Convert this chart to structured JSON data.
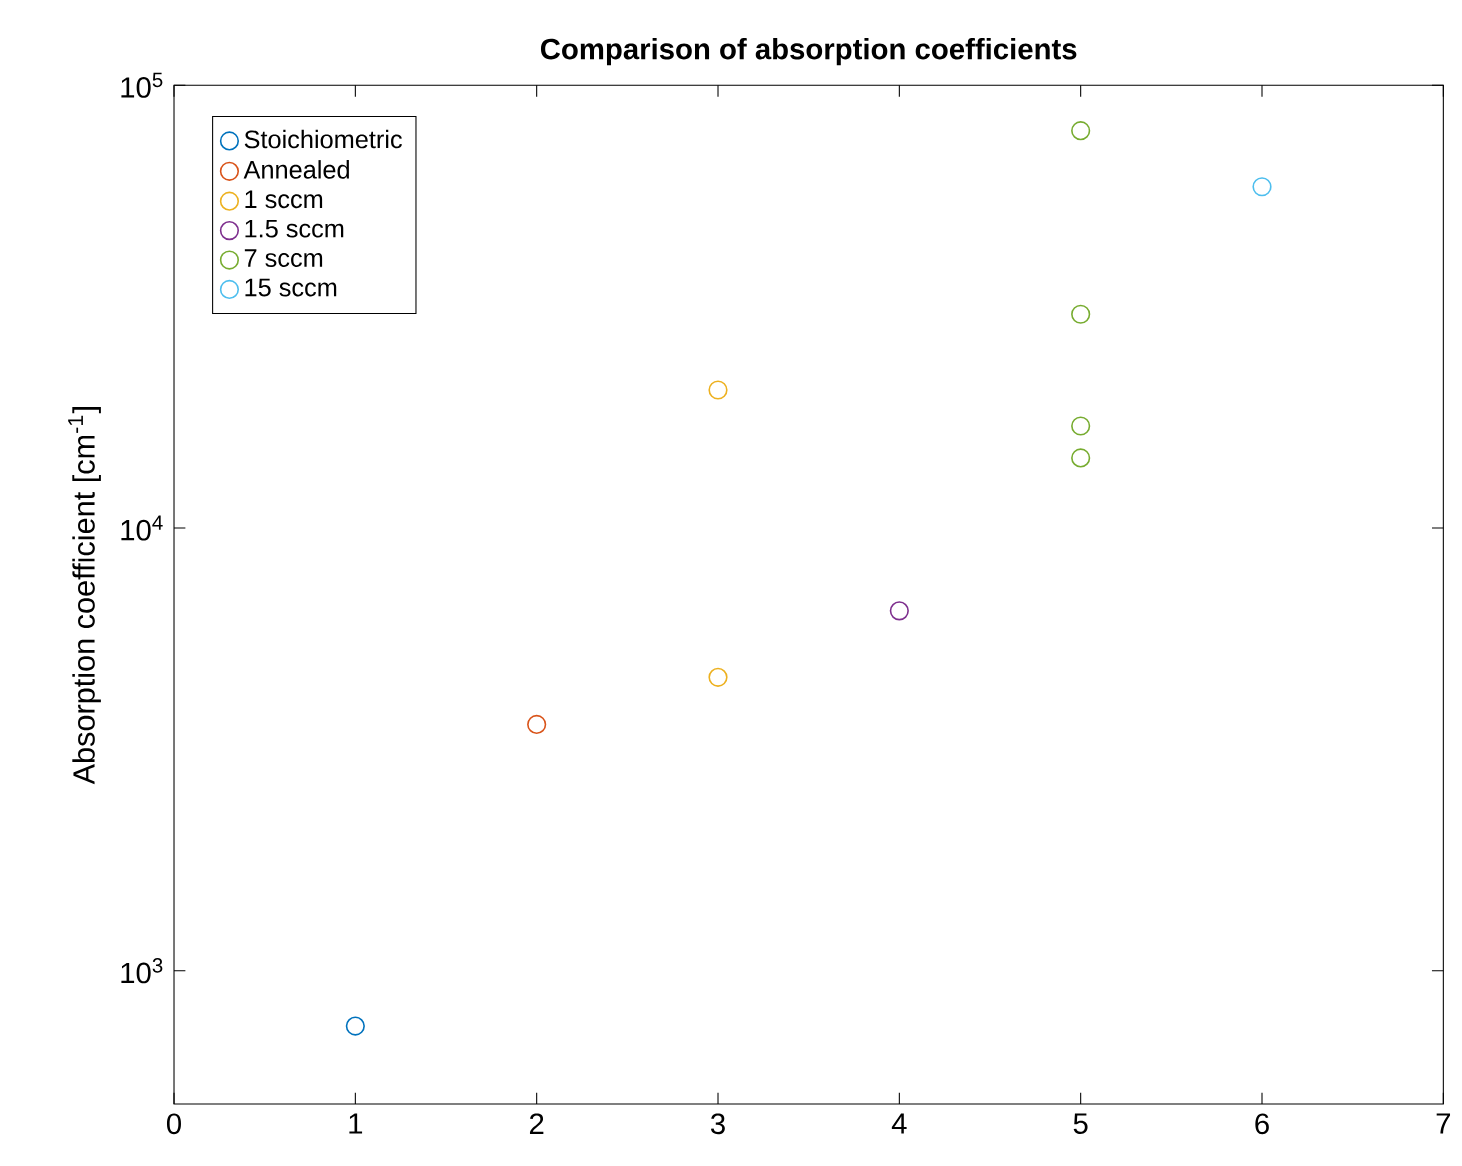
{
  "chart_data": {
    "type": "scatter",
    "title": "Comparison of absorption coefficients",
    "ylabel": "Absorption coefficient [cm$^{-1}$]",
    "log": "y",
    "marker": "circle",
    "legend": "top left",
    "grid": false,
    "xlim": [
      0,
      7
    ],
    "xticks": [
      0,
      1,
      2,
      3,
      4,
      5,
      6,
      7
    ],
    "ylim": [
      500,
      100000
    ],
    "yticks": [
      {
        "value": 1000,
        "label": "10$^{3}$"
      },
      {
        "value": 10000,
        "label": "10$^{4}$"
      },
      {
        "value": 100000,
        "label": "10$^{5}$"
      }
    ],
    "series": [
      {
        "name": "Stoichiometric",
        "color": "#0072bd",
        "x": [
          1
        ],
        "values": [
          750
        ]
      },
      {
        "name": "Annealed",
        "color": "#d95319",
        "x": [
          2
        ],
        "values": [
          3600
        ]
      },
      {
        "name": "1 sccm",
        "color": "#edb120",
        "x": [
          3,
          3
        ],
        "values": [
          20500,
          4600
        ]
      },
      {
        "name": "1.5 sccm",
        "color": "#7e2f8e",
        "x": [
          4
        ],
        "values": [
          6500
        ]
      },
      {
        "name": "7 sccm",
        "color": "#77ac30",
        "x": [
          5,
          5,
          5,
          5
        ],
        "values": [
          79000,
          30400,
          17000,
          14400
        ]
      },
      {
        "name": "15 sccm",
        "color": "#4dbeee",
        "x": [
          6
        ],
        "values": [
          59000
        ]
      }
    ]
  }
}
